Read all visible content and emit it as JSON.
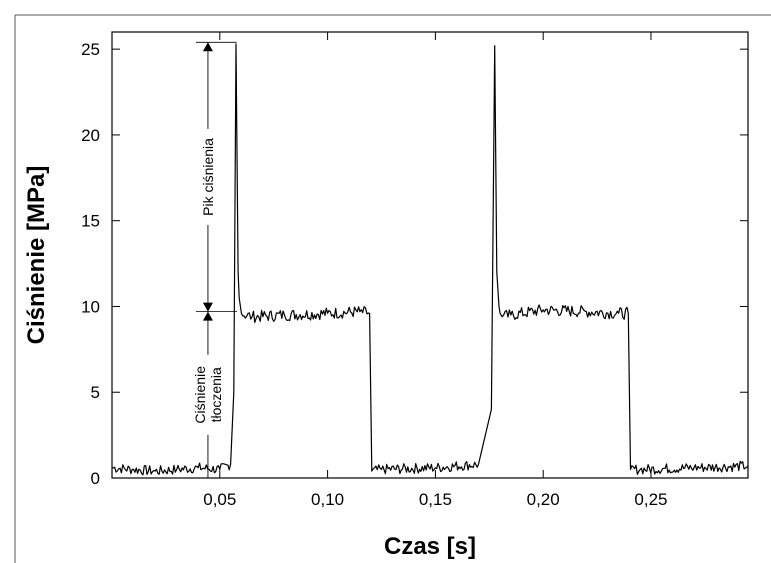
{
  "chart_data": {
    "type": "line",
    "xlabel": "Czas [s]",
    "ylabel": "Ciśnienie [MPa]",
    "xlim": [
      0.0,
      0.295
    ],
    "ylim": [
      0,
      26
    ],
    "x_ticks": [
      {
        "value": 0.05,
        "label": "0,05"
      },
      {
        "value": 0.1,
        "label": "0,10"
      },
      {
        "value": 0.15,
        "label": "0,15"
      },
      {
        "value": 0.2,
        "label": "0,20"
      },
      {
        "value": 0.25,
        "label": "0,25"
      }
    ],
    "y_ticks": [
      {
        "value": 0,
        "label": "0"
      },
      {
        "value": 5,
        "label": "5"
      },
      {
        "value": 10,
        "label": "10"
      },
      {
        "value": 15,
        "label": "15"
      },
      {
        "value": 20,
        "label": "20"
      },
      {
        "value": 25,
        "label": "25"
      }
    ],
    "grid": false,
    "series": [
      {
        "color": "#000000",
        "x": [
          0.0,
          0.01,
          0.02,
          0.03,
          0.04,
          0.05,
          0.055,
          0.0565,
          0.0575,
          0.0585,
          0.059,
          0.06,
          0.065,
          0.08,
          0.1,
          0.115,
          0.1195,
          0.1205,
          0.125,
          0.15,
          0.17,
          0.176,
          0.1775,
          0.1785,
          0.1795,
          0.18,
          0.181,
          0.185,
          0.2,
          0.22,
          0.235,
          0.2395,
          0.2405,
          0.245,
          0.27,
          0.295
        ],
        "y": [
          0.6,
          0.5,
          0.4,
          0.5,
          0.6,
          0.5,
          0.8,
          5.0,
          25.3,
          12.0,
          10.5,
          9.6,
          9.4,
          9.5,
          9.6,
          9.7,
          9.6,
          0.4,
          0.5,
          0.6,
          0.8,
          4.0,
          25.2,
          12.0,
          10.0,
          9.6,
          9.4,
          9.5,
          9.8,
          9.7,
          9.6,
          9.6,
          0.5,
          0.5,
          0.6,
          0.7
        ]
      }
    ],
    "annotations": [
      {
        "text": "Pik ciśnienia",
        "range_y": [
          9.7,
          25.4
        ],
        "x": 0.0445
      },
      {
        "text_lines": [
          "Ciśnienie",
          "tłoczenia"
        ],
        "range_y": [
          0,
          9.7
        ],
        "x": 0.0445
      }
    ]
  }
}
